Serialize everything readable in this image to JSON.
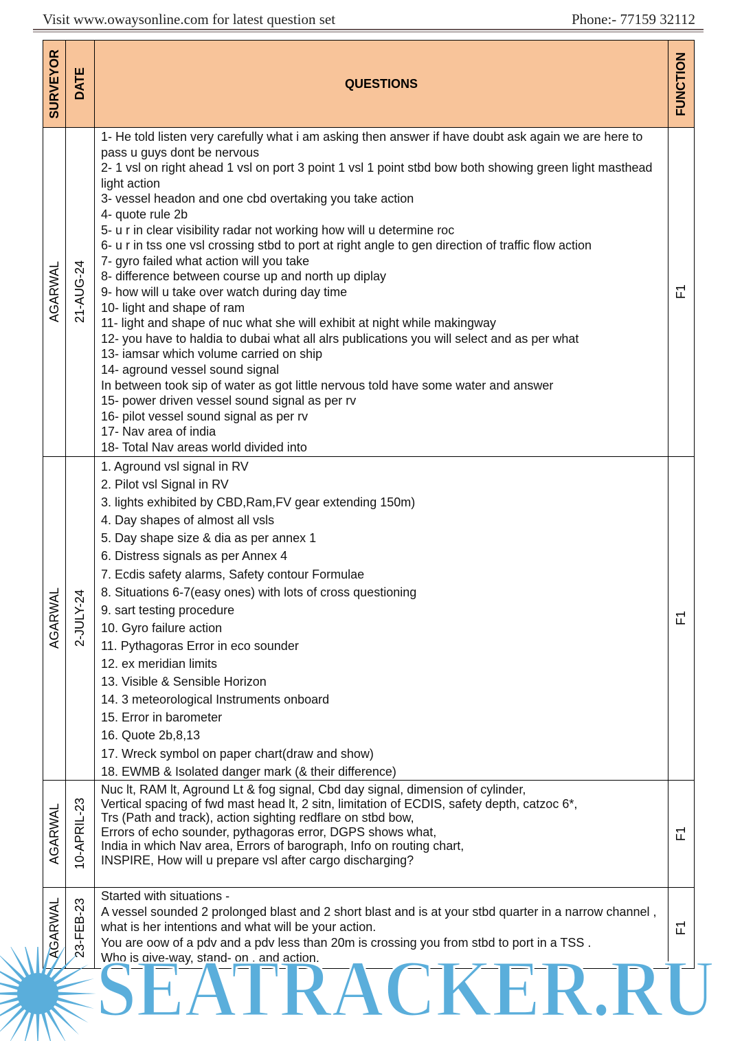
{
  "header": {
    "left": "Visit www.owaysonline.com for latest question set",
    "right": "Phone:- 77159 32112"
  },
  "table": {
    "columns": [
      "SURVEYOR",
      "DATE",
      "QUESTIONS",
      "FUNCTION"
    ],
    "rows": [
      {
        "surveyor": "AGARWAL",
        "date": "21-AUG-24",
        "function": "F1",
        "questions": [
          "1- He told listen very carefully what i am asking then answer if have doubt ask again we are here to pass u guys dont be nervous",
          "2- 1 vsl on right ahead 1 vsl on port 3 point 1 vsl 1 point stbd bow both showing green light masthead light action",
          "3- vessel headon and one cbd overtaking you take action",
          "4- quote rule 2b",
          "5- u r in clear visibility radar not working how will u determine roc",
          "6- u r in tss one vsl crossing stbd to port at right angle to gen direction of traffic flow action",
          "7- gyro failed what action will you take",
          "8- difference between course up and north up diplay",
          "9- how will u take over watch during day time",
          "10- light and shape of ram",
          "11- light and shape of nuc what she will exhibit at night while makingway",
          "12- you have to haldia to dubai what all alrs publications you will select and as per what",
          "13- iamsar which volume carried on ship",
          "14- aground vessel sound signal",
          "In between took sip of water as got little nervous told have some water and answer",
          "15- power driven vessel sound signal as per rv",
          "16- pilot vessel sound signal as per rv",
          "17- Nav area of india",
          "18- Total Nav areas world divided into"
        ]
      },
      {
        "surveyor": "AGARWAL",
        "date": "2-JULY-24",
        "function": "F1",
        "questions": [
          "1. Aground vsl signal in RV",
          "2. Pilot vsl Signal in RV",
          "3. lights exhibited by CBD,Ram,FV gear extending 150m)",
          "4. Day shapes of almost all vsls",
          "5. Day shape size & dia as per annex 1",
          "6. Distress signals as per Annex 4",
          "7. Ecdis safety alarms, Safety contour Formulae",
          "8. Situations 6-7(easy ones) with lots of cross questioning",
          "9. sart testing procedure",
          "10. Gyro failure action",
          "11. Pythagoras Error in eco sounder",
          "12. ex meridian limits",
          "13. Visible & Sensible Horizon",
          "14. 3 meteorological Instruments onboard",
          "15. Error in barometer",
          "16. Quote 2b,8,13",
          "17. Wreck symbol on paper chart(draw and show)",
          "18. EWMB & Isolated danger mark (& their difference)"
        ]
      },
      {
        "surveyor": "AGARWAL",
        "date": "10-APRIL-23",
        "function": "F1",
        "questions": [
          "Nuc lt, RAM lt, Aground Lt & fog signal, Cbd day signal, dimension of cylinder,",
          "Vertical spacing of fwd mast head lt, 2 sitn, limitation of ECDIS, safety depth, catzoc 6*,",
          "Trs (Path and track), action sighting redflare on stbd bow,",
          "Errors of echo sounder, pythagoras error, DGPS shows what,",
          "India in which Nav area, Errors of barograph, Info on routing chart,",
          "INSPIRE, How will u prepare vsl after cargo discharging?"
        ]
      },
      {
        "surveyor": "AGARWAL",
        "date": "23-FEB-23",
        "function": "F1",
        "questions": [
          "Started with situations -",
          "A vessel sounded 2 prolonged blast and 2 short blast and is at your stbd quarter in a narrow channel , what is her intentions and what will be your action.",
          "You are oow of a pdv and a pdv less than 20m is crossing you from stbd to port in a TSS .",
          "Who is give-way, stand- on , and action."
        ]
      }
    ]
  },
  "logo": {
    "text": "SEATRACKER.RU"
  }
}
